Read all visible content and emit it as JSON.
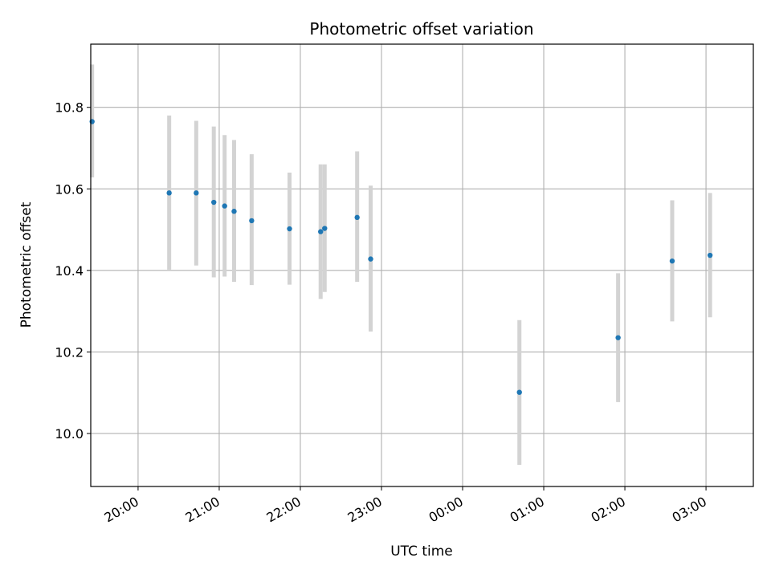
{
  "chart_data": {
    "type": "scatter",
    "title": "Photometric offset variation",
    "xlabel": "UTC time",
    "ylabel": "Photometric offset",
    "xlim": [
      "19:25",
      "27:35"
    ],
    "ylim": [
      9.87,
      10.955
    ],
    "grid": true,
    "x_ticks": [
      {
        "value": "20:00",
        "label": "20:00"
      },
      {
        "value": "21:00",
        "label": "21:00"
      },
      {
        "value": "22:00",
        "label": "22:00"
      },
      {
        "value": "23:00",
        "label": "23:00"
      },
      {
        "value": "24:00",
        "label": "00:00"
      },
      {
        "value": "25:00",
        "label": "01:00"
      },
      {
        "value": "26:00",
        "label": "02:00"
      },
      {
        "value": "27:00",
        "label": "03:00"
      }
    ],
    "y_ticks": [
      {
        "value": 10.0,
        "label": "10.0"
      },
      {
        "value": 10.2,
        "label": "10.2"
      },
      {
        "value": 10.4,
        "label": "10.4"
      },
      {
        "value": 10.6,
        "label": "10.6"
      },
      {
        "value": 10.8,
        "label": "10.8"
      }
    ],
    "series": [
      {
        "marker_color": "#1f77b4",
        "errorbar_color": "#d3d3d3",
        "points": [
          {
            "x": "19:26",
            "y": 10.765,
            "ylow": 10.628,
            "yhigh": 10.905
          },
          {
            "x": "20:23",
            "y": 10.59,
            "ylow": 10.402,
            "yhigh": 10.78
          },
          {
            "x": "20:43",
            "y": 10.59,
            "ylow": 10.412,
            "yhigh": 10.767
          },
          {
            "x": "20:56",
            "y": 10.567,
            "ylow": 10.383,
            "yhigh": 10.753
          },
          {
            "x": "21:04",
            "y": 10.558,
            "ylow": 10.385,
            "yhigh": 10.732
          },
          {
            "x": "21:11",
            "y": 10.545,
            "ylow": 10.372,
            "yhigh": 10.72
          },
          {
            "x": "21:24",
            "y": 10.522,
            "ylow": 10.364,
            "yhigh": 10.685
          },
          {
            "x": "21:52",
            "y": 10.502,
            "ylow": 10.365,
            "yhigh": 10.64
          },
          {
            "x": "22:15",
            "y": 10.495,
            "ylow": 10.33,
            "yhigh": 10.66
          },
          {
            "x": "22:18",
            "y": 10.503,
            "ylow": 10.347,
            "yhigh": 10.66
          },
          {
            "x": "22:42",
            "y": 10.53,
            "ylow": 10.372,
            "yhigh": 10.692
          },
          {
            "x": "22:52",
            "y": 10.428,
            "ylow": 10.25,
            "yhigh": 10.608
          },
          {
            "x": "24:42",
            "y": 10.101,
            "ylow": 9.923,
            "yhigh": 10.278
          },
          {
            "x": "25:55",
            "y": 10.235,
            "ylow": 10.077,
            "yhigh": 10.393
          },
          {
            "x": "26:35",
            "y": 10.423,
            "ylow": 10.275,
            "yhigh": 10.572
          },
          {
            "x": "27:03",
            "y": 10.437,
            "ylow": 10.285,
            "yhigh": 10.59
          }
        ]
      }
    ]
  }
}
